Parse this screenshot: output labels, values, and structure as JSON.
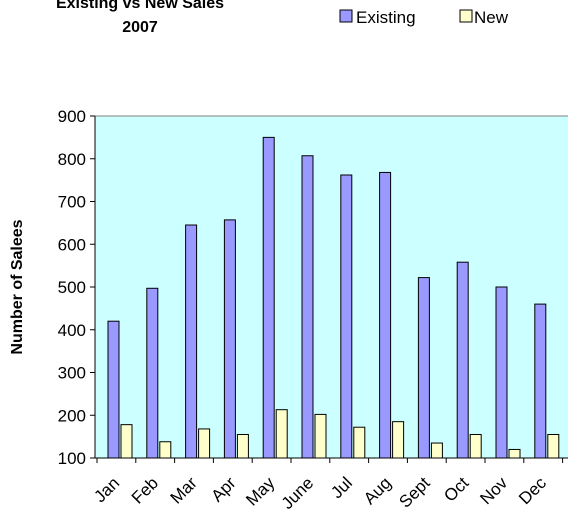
{
  "chart_data": {
    "type": "bar",
    "title_line1": "Existing vs New Sales",
    "title_line2": "2007",
    "ylabel": "Number of Salees",
    "xlabel": "",
    "categories": [
      "Jan",
      "Feb",
      "Mar",
      "Apr",
      "May",
      "June",
      "Jul",
      "Aug",
      "Sept",
      "Oct",
      "Nov",
      "Dec"
    ],
    "series": [
      {
        "name": "Existing",
        "values": [
          420,
          497,
          645,
          657,
          850,
          807,
          762,
          768,
          522,
          558,
          500,
          460
        ],
        "color": "#9999ff"
      },
      {
        "name": "New",
        "values": [
          178,
          138,
          168,
          155,
          213,
          202,
          172,
          185,
          135,
          155,
          120,
          155
        ],
        "color": "#ffffcc"
      }
    ],
    "ylim": [
      100,
      900
    ],
    "yticks": [
      100,
      200,
      300,
      400,
      500,
      600,
      700,
      800,
      900
    ],
    "plot_background": "#ccffff",
    "grid": false,
    "legend_position": "top-right"
  }
}
